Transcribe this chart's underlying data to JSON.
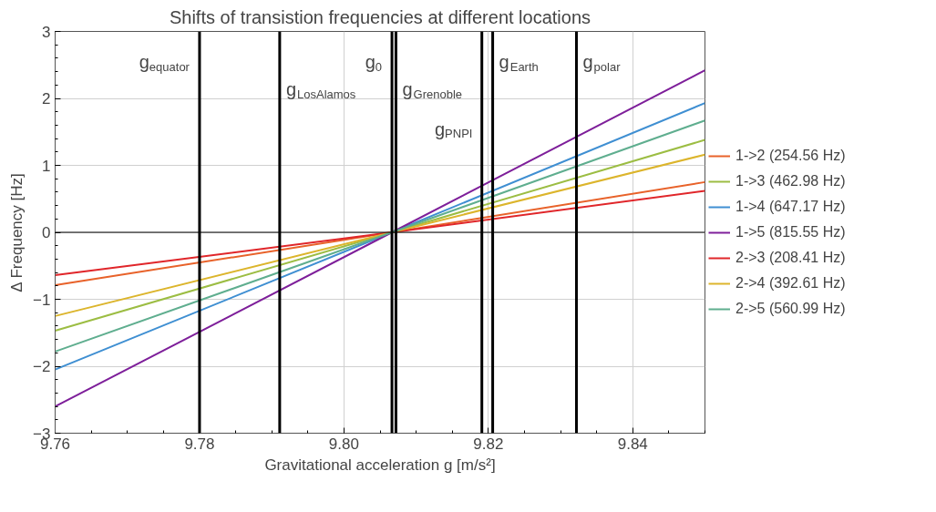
{
  "chart_data": {
    "type": "line",
    "title": "Shifts of transistion frequencies at different locations",
    "xlabel": "Gravitational acceleration g [m/s²]",
    "ylabel": "Δ Frequency [Hz]",
    "x": [
      9.76,
      9.80665,
      9.85
    ],
    "series": [
      {
        "name": "1->2 (254.56 Hz)",
        "color": "#e8622a",
        "values": [
          -0.79,
          0,
          0.75
        ]
      },
      {
        "name": "1->3 (462.98 Hz)",
        "color": "#9cbd43",
        "values": [
          -1.47,
          0,
          1.38
        ]
      },
      {
        "name": "1->4 (647.17 Hz)",
        "color": "#3f8fd2",
        "values": [
          -2.05,
          0,
          1.93
        ]
      },
      {
        "name": "1->5 (815.55 Hz)",
        "color": "#7e1f9a",
        "values": [
          -2.6,
          0,
          2.42
        ]
      },
      {
        "name": "2->3 (208.41 Hz)",
        "color": "#e0262a",
        "values": [
          -0.64,
          0,
          0.62
        ]
      },
      {
        "name": "2->4 (392.61 Hz)",
        "color": "#dcb52c",
        "values": [
          -1.25,
          0,
          1.16
        ]
      },
      {
        "name": "2->5 (560.99 Hz)",
        "color": "#5fae8f",
        "values": [
          -1.78,
          0,
          1.67
        ]
      }
    ],
    "xlim": [
      9.76,
      9.85
    ],
    "xticks": [
      9.76,
      9.78,
      {
        "value": 9.8,
        "label": "9.80"
      },
      9.82,
      9.84
    ],
    "ylim": [
      -3,
      3
    ],
    "yticks": [
      {
        "value": -3,
        "label": "−3"
      },
      {
        "value": -2,
        "label": "−2"
      },
      {
        "value": -1,
        "label": "−1"
      },
      0,
      1,
      2,
      3
    ],
    "ref_lines": [
      {
        "axis": "y",
        "value": 0,
        "color": "#000000"
      },
      {
        "axis": "x",
        "value": 9.78,
        "label": "g$_{equator}$",
        "color": "#000000"
      },
      {
        "axis": "x",
        "value": 9.7911,
        "label": "g$_{LosAlamos}$",
        "color": "#000000"
      },
      {
        "axis": "x",
        "value": 9.80665,
        "label": "g$_{0}$",
        "color": "#000000"
      },
      {
        "axis": "x",
        "value": 9.8072,
        "label": "g$_{Grenoble}$",
        "color": "#000000"
      },
      {
        "axis": "x",
        "value": 9.8191,
        "label": "g$_{PNPI}$",
        "color": "#000000"
      },
      {
        "axis": "x",
        "value": 9.8206,
        "label": "g$_{Earth}$",
        "color": "#000000"
      },
      {
        "axis": "x",
        "value": 9.8322,
        "label": "g$_{polar}$",
        "color": "#000000"
      }
    ],
    "grid": true,
    "legend": "right",
    "line_style": "solid",
    "marker": "none"
  }
}
